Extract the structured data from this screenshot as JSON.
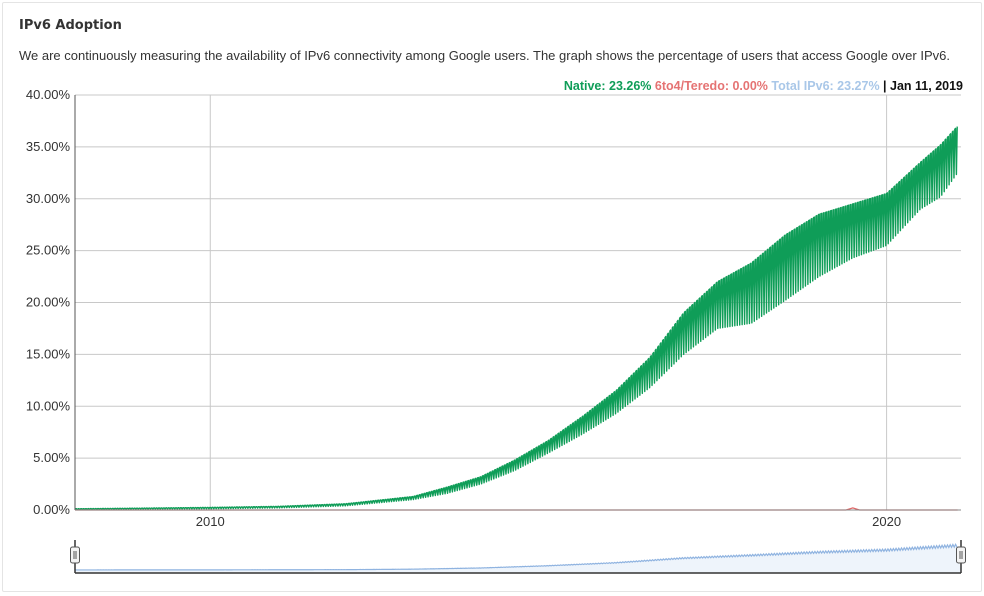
{
  "title": "IPv6 Adoption",
  "description": "We are continuously measuring the availability of IPv6 connectivity among Google users. The graph shows the percentage of users that access Google over IPv6.",
  "legend": {
    "native": "Native: 23.26%",
    "teredo": "6to4/Teredo: 0.00%",
    "total": "Total IPv6: 23.27%",
    "separator": " | ",
    "date": "Jan 11, 2019"
  },
  "colors": {
    "native": "#0f9d58",
    "teredo": "#e06666",
    "total": "#8fb3e0",
    "grid": "#c8c8c8",
    "axis": "#555555",
    "navigator_fill": "#eef4fb"
  },
  "chart_data": {
    "type": "area",
    "title": "",
    "xlabel": "",
    "ylabel": "",
    "x_ticks": [
      "2010",
      "2020"
    ],
    "y_ticks": [
      "0.00%",
      "5.00%",
      "10.00%",
      "15.00%",
      "20.00%",
      "25.00%",
      "30.00%",
      "35.00%",
      "40.00%"
    ],
    "x_range": [
      2008.0,
      2021.1
    ],
    "ylim": [
      0,
      40
    ],
    "grid": true,
    "series": [
      {
        "name": "Native",
        "color": "#0f9d58",
        "band": true,
        "x": [
          2008.0,
          2009.0,
          2010.0,
          2011.0,
          2012.0,
          2013.0,
          2013.5,
          2014.0,
          2014.5,
          2015.0,
          2015.5,
          2016.0,
          2016.5,
          2017.0,
          2017.5,
          2018.0,
          2018.5,
          2019.0,
          2019.5,
          2020.0,
          2020.5,
          2020.8,
          2021.05
        ],
        "low": [
          0.05,
          0.08,
          0.12,
          0.2,
          0.4,
          1.0,
          1.6,
          2.5,
          3.8,
          5.5,
          7.3,
          9.3,
          11.8,
          15.0,
          17.5,
          18.0,
          20.2,
          22.5,
          24.3,
          25.5,
          29.0,
          30.2,
          32.5
        ],
        "high": [
          0.12,
          0.18,
          0.25,
          0.35,
          0.6,
          1.3,
          2.2,
          3.2,
          4.8,
          6.7,
          9.0,
          11.5,
          14.7,
          19.0,
          22.0,
          23.8,
          26.5,
          28.5,
          29.5,
          30.5,
          33.5,
          35.2,
          37.0
        ]
      },
      {
        "name": "6to4/Teredo",
        "color": "#e06666",
        "x": [
          2008.0,
          2012.0,
          2016.0,
          2019.4,
          2019.5,
          2019.6,
          2021.05
        ],
        "values": [
          0.0,
          0.0,
          0.0,
          0.0,
          0.2,
          0.0,
          0.0
        ]
      }
    ],
    "navigator": {
      "name": "Total IPv6",
      "color": "#8fb3e0",
      "x": [
        2008.0,
        2010.0,
        2012.0,
        2013.0,
        2014.0,
        2015.0,
        2016.0,
        2017.0,
        2018.0,
        2019.0,
        2020.0,
        2021.05
      ],
      "values": [
        0.1,
        0.2,
        0.5,
        1.2,
        2.9,
        6.1,
        10.4,
        17.0,
        21.0,
        25.5,
        28.5,
        35.0
      ]
    }
  }
}
